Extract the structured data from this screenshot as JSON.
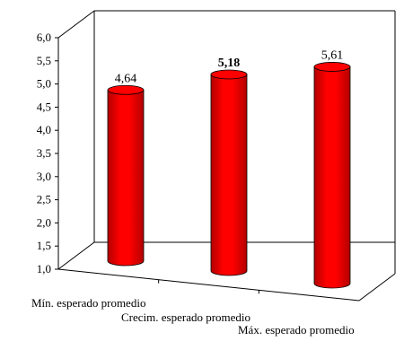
{
  "chart_data": {
    "type": "bar",
    "style": "3d-cylinder",
    "categories": [
      "Mín. esperado promedio",
      "Crecim. esperado promedio",
      "Máx. esperado promedio"
    ],
    "values": [
      4.64,
      5.18,
      5.61
    ],
    "value_labels": [
      "4,64",
      "5,18",
      "5,61"
    ],
    "bold_value_index": 1,
    "ylim": [
      1.0,
      6.0
    ],
    "yticks": [
      {
        "value": 1.0,
        "label": "1,0"
      },
      {
        "value": 1.5,
        "label": "1,5"
      },
      {
        "value": 2.0,
        "label": "2,0"
      },
      {
        "value": 2.5,
        "label": "2,5"
      },
      {
        "value": 3.0,
        "label": "3,0"
      },
      {
        "value": 3.5,
        "label": "3,5"
      },
      {
        "value": 4.0,
        "label": "4,0"
      },
      {
        "value": 4.5,
        "label": "4,5"
      },
      {
        "value": 5.0,
        "label": "5,0"
      },
      {
        "value": 5.5,
        "label": "5,5"
      },
      {
        "value": 6.0,
        "label": "6,0"
      }
    ],
    "grid": false,
    "legend": "none",
    "bar_color": "#ff0000",
    "bar_dark_color": "#b30000"
  }
}
